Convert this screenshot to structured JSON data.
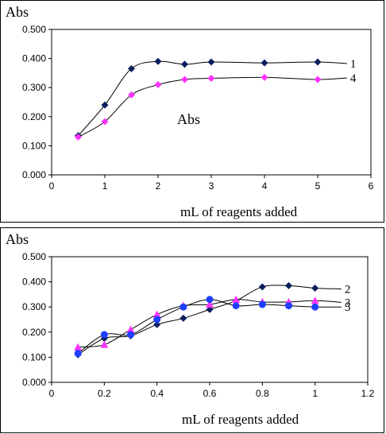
{
  "chart_data": [
    {
      "type": "scatter",
      "ylabel": "Abs",
      "xlabel": "mL of reagents added",
      "annotation": "Abs",
      "xlim": [
        0,
        6
      ],
      "ylim": [
        0,
        0.5
      ],
      "xticks": [
        "0",
        "1",
        "2",
        "3",
        "4",
        "5",
        "6"
      ],
      "yticks": [
        "0.000",
        "0.100",
        "0.200",
        "0.300",
        "0.400",
        "0.500"
      ],
      "series": [
        {
          "name": "1",
          "color": "#0a1f5c",
          "marker": "diamond",
          "x": [
            0.5,
            1.0,
            1.5,
            2.0,
            2.5,
            3.0,
            4.0,
            5.0
          ],
          "y": [
            0.135,
            0.24,
            0.365,
            0.39,
            0.38,
            0.388,
            0.385,
            0.388
          ]
        },
        {
          "name": "4",
          "color": "#ff33ff",
          "marker": "diamond",
          "x": [
            0.5,
            1.0,
            1.5,
            2.0,
            2.5,
            3.0,
            4.0,
            5.0
          ],
          "y": [
            0.13,
            0.183,
            0.275,
            0.31,
            0.328,
            0.332,
            0.335,
            0.328
          ]
        }
      ]
    },
    {
      "type": "scatter",
      "ylabel": "Abs",
      "xlabel": "mL of reagents added",
      "xlim": [
        0,
        1.2
      ],
      "ylim": [
        0,
        0.5
      ],
      "xticks": [
        "0",
        "0.2",
        "0.4",
        "0.6",
        "0.8",
        "1",
        "1.2"
      ],
      "yticks": [
        "0.000",
        "0.100",
        "0.200",
        "0.300",
        "0.400",
        "0.500"
      ],
      "series": [
        {
          "name": "2",
          "color": "#0a1f5c",
          "marker": "diamond",
          "x": [
            0.1,
            0.2,
            0.3,
            0.4,
            0.5,
            0.6,
            0.7,
            0.8,
            0.9,
            1.0
          ],
          "y": [
            0.11,
            0.175,
            0.185,
            0.23,
            0.255,
            0.29,
            0.325,
            0.38,
            0.385,
            0.375
          ]
        },
        {
          "name": "3",
          "color": "#ff33ff",
          "marker": "triangle",
          "x": [
            0.1,
            0.2,
            0.3,
            0.4,
            0.5,
            0.6,
            0.7,
            0.8,
            0.9,
            1.0
          ],
          "y": [
            0.14,
            0.15,
            0.21,
            0.27,
            0.305,
            0.31,
            0.33,
            0.32,
            0.32,
            0.325
          ]
        },
        {
          "name": "5",
          "color": "#1f3fff",
          "marker": "circle",
          "x": [
            0.1,
            0.2,
            0.3,
            0.4,
            0.5,
            0.6,
            0.7,
            0.8,
            0.9,
            1.0
          ],
          "y": [
            0.115,
            0.19,
            0.19,
            0.25,
            0.3,
            0.33,
            0.305,
            0.31,
            0.305,
            0.3
          ]
        }
      ]
    }
  ]
}
